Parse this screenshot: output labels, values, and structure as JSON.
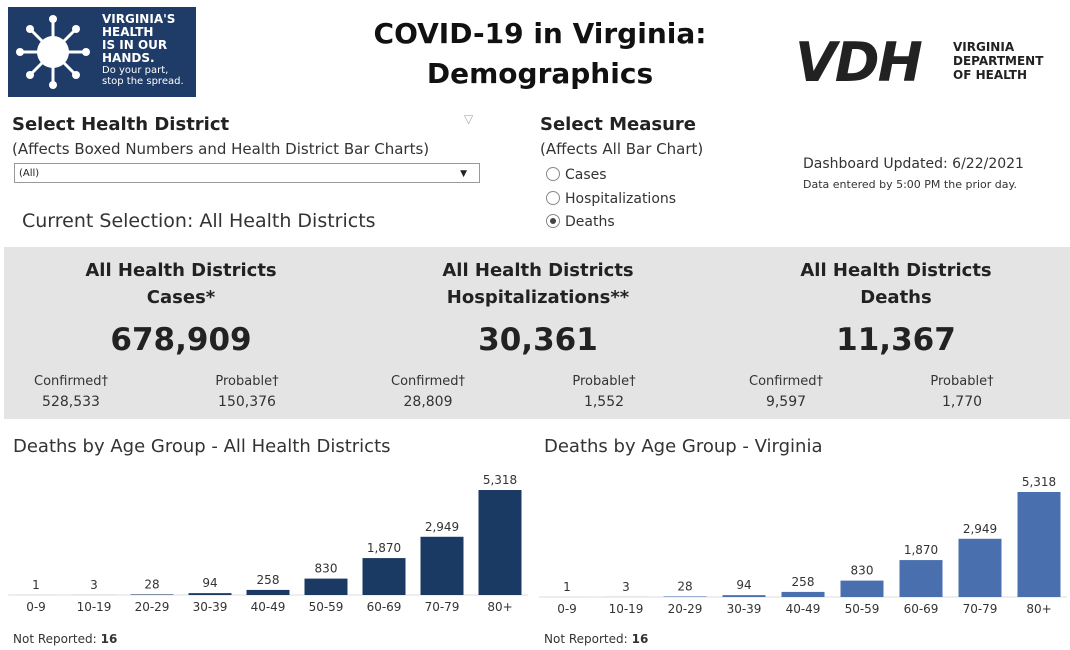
{
  "header": {
    "title_line1": "COVID-19 in Virginia:",
    "title_line2": "Demographics",
    "logo_left": {
      "line1": "VIRGINIA'S",
      "line2": "HEALTH",
      "line3": "IS IN OUR",
      "line4": "HANDS.",
      "line5": "Do your part,",
      "line6": "stop the spread."
    },
    "logo_right": {
      "mark": "VDH",
      "line1": "VIRGINIA",
      "line2": "DEPARTMENT",
      "line3": "OF HEALTH"
    }
  },
  "filters": {
    "district_label": "Select Health District",
    "district_note": "(Affects Boxed Numbers and Health District Bar Charts)",
    "district_value": "(All)",
    "measure_label": "Select Measure",
    "measure_note": "(Affects All Bar Chart)",
    "measures": [
      "Cases",
      "Hospitalizations",
      "Deaths"
    ],
    "selected_measure": 2,
    "updated": "Dashboard Updated: 6/22/2021",
    "updated_note": "Data entered by 5:00 PM the prior day.",
    "current_selection": "Current Selection: All Health Districts"
  },
  "summary": [
    {
      "title1": "All Health Districts",
      "title2": "Cases*",
      "total": "678,909",
      "confirmed_label": "Confirmed†",
      "confirmed": "528,533",
      "probable_label": "Probable†",
      "probable": "150,376"
    },
    {
      "title1": "All Health Districts",
      "title2": "Hospitalizations**",
      "total": "30,361",
      "confirmed_label": "Confirmed†",
      "confirmed": "28,809",
      "probable_label": "Probable†",
      "probable": "1,552"
    },
    {
      "title1": "All Health Districts",
      "title2": "Deaths",
      "total": "11,367",
      "confirmed_label": "Confirmed†",
      "confirmed": "9,597",
      "probable_label": "Probable†",
      "probable": "1,770"
    }
  ],
  "chart_data": [
    {
      "type": "bar",
      "title": "Deaths by Age Group - All Health Districts",
      "categories": [
        "0-9",
        "10-19",
        "20-29",
        "30-39",
        "40-49",
        "50-59",
        "60-69",
        "70-79",
        "80+"
      ],
      "values": [
        1,
        3,
        28,
        94,
        258,
        830,
        1870,
        2949,
        5318
      ],
      "value_labels": [
        "1",
        "3",
        "28",
        "94",
        "258",
        "830",
        "1,870",
        "2,949",
        "5,318"
      ],
      "color": "#1b3a63",
      "not_reported_label": "Not Reported:",
      "not_reported": 16
    },
    {
      "type": "bar",
      "title": "Deaths by Age Group - Virginia",
      "categories": [
        "0-9",
        "10-19",
        "20-29",
        "30-39",
        "40-49",
        "50-59",
        "60-69",
        "70-79",
        "80+"
      ],
      "values": [
        1,
        3,
        28,
        94,
        258,
        830,
        1870,
        2949,
        5318
      ],
      "value_labels": [
        "1",
        "3",
        "28",
        "94",
        "258",
        "830",
        "1,870",
        "2,949",
        "5,318"
      ],
      "color": "#4a6fae",
      "not_reported_label": "Not Reported:",
      "not_reported": 16
    }
  ]
}
